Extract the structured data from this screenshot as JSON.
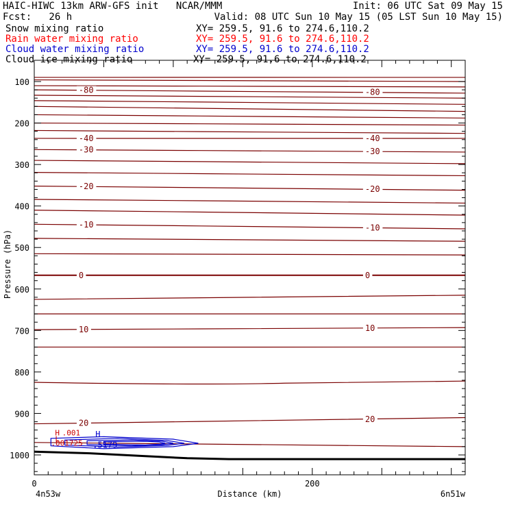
{
  "header": {
    "line1_left": "HAIC-HIWC 13km ARW-GFS init   NCAR/MMM",
    "line1_right": "Init: 06 UTC Sat 09 May 15",
    "line2_left": "Fcst:   26 h",
    "line2_right": "Valid: 08 UTC Sun 10 May 15 (05 LST Sun 10 May 15)",
    "fields": [
      {
        "label": "Snow mixing ratio",
        "xy": "XY= 259.5, 91.6 to 274.6,110.2",
        "color": "#000000"
      },
      {
        "label": "Rain water mixing ratio",
        "xy": "XY= 259.5, 91.6 to 274.6,110.2",
        "color": "#ff0000"
      },
      {
        "label": "Cloud water mixing ratio",
        "xy": "XY= 259.5, 91.6 to 274.6,110.2",
        "color": "#0000cc"
      },
      {
        "label": "Cloud ice mixing ratio",
        "xy": "XY= 259.5, 91.6 to 274.6,110.2",
        "color": "#000000"
      }
    ]
  },
  "chart_data": {
    "type": "line",
    "xlabel": "Distance (km)",
    "ylabel": "Pressure (hPa)",
    "xlim": [
      0,
      310
    ],
    "ylim": [
      1050,
      50
    ],
    "xticks": [
      0,
      200
    ],
    "yticks": [
      100,
      200,
      300,
      400,
      500,
      600,
      700,
      800,
      900,
      1000
    ],
    "corner_left": "4n53w",
    "corner_right": "6n51w",
    "temperature_color": "#7a0000",
    "cloud_color": "#0000cc",
    "rain_color": "#cc0000",
    "isotherms": [
      {
        "p0": 90,
        "p1": 90
      },
      {
        "p0": 96,
        "p1": 100
      },
      {
        "p0": 110,
        "p1": 113
      },
      {
        "p0": 120,
        "p1": 128,
        "label": "-80"
      },
      {
        "p0": 133,
        "p1": 140
      },
      {
        "p0": 146,
        "p1": 155
      },
      {
        "p0": 160,
        "p1": 172
      },
      {
        "p0": 180,
        "p1": 188
      },
      {
        "p0": 200,
        "p1": 205
      },
      {
        "p0": 218,
        "p1": 225
      },
      {
        "p0": 237,
        "p1": 237,
        "label": "-40"
      },
      {
        "p0": 264,
        "p1": 270,
        "label": "-30"
      },
      {
        "p0": 290,
        "p1": 298
      },
      {
        "p0": 319,
        "p1": 327
      },
      {
        "p0": 352,
        "p1": 362,
        "label": "-20"
      },
      {
        "p0": 384,
        "p1": 393
      },
      {
        "p0": 410,
        "p1": 422
      },
      {
        "p0": 444,
        "p1": 455,
        "label": "-10"
      },
      {
        "p0": 478,
        "p1": 485
      },
      {
        "p0": 515,
        "p1": 518
      },
      {
        "p0": 567,
        "p1": 567,
        "label": "0",
        "bold": true
      },
      {
        "p0": 625,
        "p1": 615
      },
      {
        "p0": 660,
        "p1": 660
      },
      {
        "p0": 698,
        "p1": 693,
        "label": "10"
      },
      {
        "p0": 740,
        "p1": 740
      },
      {
        "p0": 825,
        "p1": 822,
        "mid": 832
      },
      {
        "p0": 925,
        "p1": 910,
        "label": "20"
      },
      {
        "p0": 970,
        "p1": 980
      }
    ],
    "temperature_labels": [
      "-80",
      "-40",
      "-30",
      "-20",
      "-10",
      "0",
      "10",
      "20"
    ],
    "extra_labels": [
      {
        "text": "20",
        "color": "#7a0000"
      }
    ],
    "cloud_water_contours": [
      {
        "x": [
          12,
          50,
          100,
          118,
          100,
          50,
          12
        ],
        "p": [
          960,
          956,
          962,
          972,
          980,
          985,
          978
        ]
      },
      {
        "x": [
          22,
          60,
          95,
          108,
          95,
          60,
          22
        ],
        "p": [
          964,
          960,
          965,
          972,
          977,
          981,
          976
        ]
      },
      {
        "x": [
          38,
          70,
          92,
          100,
          92,
          70,
          38
        ],
        "p": [
          966,
          964,
          967,
          972,
          975,
          978,
          975
        ]
      },
      {
        "x": [
          50,
          80,
          90,
          94,
          90,
          80,
          50
        ],
        "p": [
          968,
          967,
          969,
          972,
          974,
          976,
          974
        ]
      }
    ],
    "cloud_water_annotations": [
      {
        "text": "H",
        "x": 44,
        "p": 957
      },
      {
        "text": ".5179",
        "x": 42,
        "p": 983
      }
    ],
    "rain_annotations": [
      {
        "text": "H",
        "x": 15,
        "p": 953
      },
      {
        "text": ".001",
        "x": 20,
        "p": 953
      },
      {
        "text": "L",
        "x": 15,
        "p": 968
      },
      {
        "text": ".001725",
        "x": 12,
        "p": 978
      }
    ],
    "terrain": {
      "x": [
        0,
        40,
        80,
        110,
        140,
        200,
        260,
        310
      ],
      "p": [
        992,
        996,
        1003,
        1008,
        1010,
        1010,
        1010,
        1010
      ]
    }
  }
}
